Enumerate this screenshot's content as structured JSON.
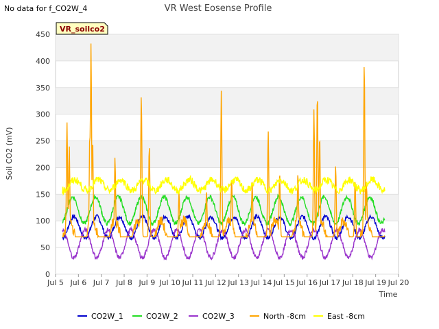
{
  "note": "No data for f_CO2W_4",
  "chart_data": {
    "type": "line",
    "title": "VR West Eosense Profile",
    "ylabel": "Soil CO2 (mV)",
    "xlabel": "Time",
    "stamp_label": "VR_soilco2",
    "xlim": [
      5,
      20
    ],
    "ylim": [
      0,
      450
    ],
    "x_ticks": [
      5,
      6,
      7,
      8,
      9,
      10,
      11,
      12,
      13,
      14,
      15,
      16,
      17,
      18,
      19,
      20
    ],
    "x_tick_labels": [
      "Jul 5",
      "Jul 6",
      "Jul 7",
      "Jul 8",
      "Jul 9",
      "Jul 10",
      "Jul 11",
      "Jul 12",
      "Jul 13",
      "Jul 14",
      "Jul 15",
      "Jul 16",
      "Jul 17",
      "Jul 18",
      "Jul 19",
      "Jul 20"
    ],
    "y_ticks": [
      0,
      50,
      100,
      150,
      200,
      250,
      300,
      350,
      400,
      450
    ],
    "grid": true,
    "legend_position": "bottom",
    "series": [
      {
        "name": "CO2W_1",
        "color": "#0000cc",
        "profile": {
          "base": 88,
          "amp": 20,
          "phase": 0.55,
          "noise": 4,
          "spikes": []
        }
      },
      {
        "name": "CO2W_2",
        "color": "#22dd22",
        "profile": {
          "base": 120,
          "amp": 25,
          "phase": 0.5,
          "noise": 4,
          "spikes": []
        }
      },
      {
        "name": "CO2W_3",
        "color": "#9933cc",
        "profile": {
          "base": 57,
          "amp": 26,
          "phase": 0.05,
          "noise": 4,
          "spikes": []
        }
      },
      {
        "name": "North -8cm",
        "color": "#ffa500",
        "profile": {
          "base": 70,
          "amp": 30,
          "phase": 0.35,
          "noise": 10,
          "spikes": [
            [
              5.5,
              285
            ],
            [
              5.6,
              240
            ],
            [
              6.5,
              268
            ],
            [
              6.55,
              433
            ],
            [
              6.62,
              255
            ],
            [
              7.6,
              220
            ],
            [
              8.75,
              338
            ],
            [
              9.1,
              243
            ],
            [
              10.4,
              155
            ],
            [
              11.6,
              155
            ],
            [
              12.25,
              344
            ],
            [
              12.7,
              180
            ],
            [
              13.6,
              173
            ],
            [
              14.3,
              270
            ],
            [
              14.8,
              190
            ],
            [
              15.6,
              190
            ],
            [
              16.3,
              310
            ],
            [
              16.45,
              342
            ],
            [
              16.55,
              263
            ],
            [
              17.25,
              205
            ],
            [
              18.1,
              180
            ],
            [
              18.5,
              399
            ],
            [
              18.6,
              170
            ]
          ]
        }
      },
      {
        "name": "East -8cm",
        "color": "#ffff00",
        "profile": {
          "base": 167,
          "amp": 10,
          "phase": 0.6,
          "noise": 7,
          "spikes": []
        }
      }
    ]
  }
}
